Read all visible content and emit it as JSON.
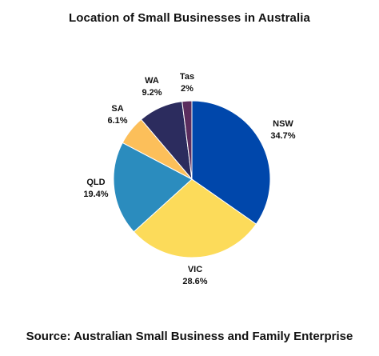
{
  "chart_data": {
    "type": "pie",
    "title": "Location of Small Businesses in Australia",
    "source": "Source: Australian Small Business and Family Enterprise",
    "slices": [
      {
        "label": "NSW",
        "value": 34.7,
        "display": "34.7%",
        "color": "#0047ab"
      },
      {
        "label": "VIC",
        "value": 28.6,
        "display": "28.6%",
        "color": "#fcdb5a"
      },
      {
        "label": "QLD",
        "value": 19.4,
        "display": "19.4%",
        "color": "#2b8cbe"
      },
      {
        "label": "SA",
        "value": 6.1,
        "display": "6.1%",
        "color": "#fcbf5a"
      },
      {
        "label": "WA",
        "value": 9.2,
        "display": "9.2%",
        "color": "#2c2c5e"
      },
      {
        "label": "Tas",
        "value": 2,
        "display": "2%",
        "color": "#5b2d5e"
      }
    ],
    "legend": "none"
  }
}
